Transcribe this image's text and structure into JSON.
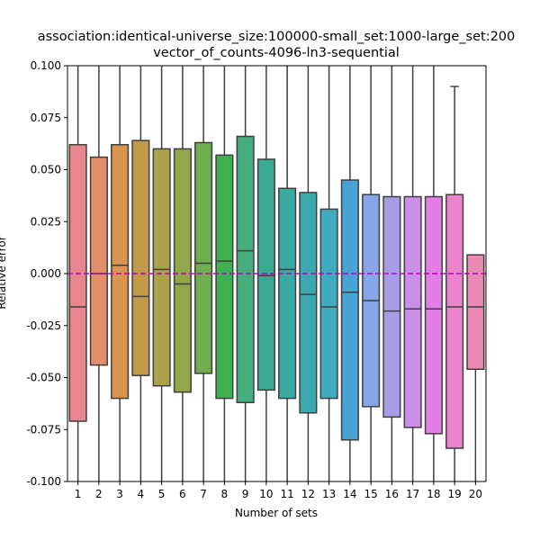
{
  "chart_data": {
    "type": "box",
    "title_line1": "association:identical-universe_size:100000-small_set:1000-large_set:200",
    "title_line2": "vector_of_counts-4096-ln3-sequential",
    "xlabel": "Number of sets",
    "ylabel": "Relative error",
    "ylim": [
      -0.1,
      0.1
    ],
    "yticks": [
      "-0.100",
      "-0.075",
      "-0.050",
      "-0.025",
      "0.000",
      "0.025",
      "0.050",
      "0.075",
      "0.100"
    ],
    "reference_line": {
      "y": 0.0,
      "color": "#bf00bf",
      "style": "dashed"
    },
    "categories": [
      "1",
      "2",
      "3",
      "4",
      "5",
      "6",
      "7",
      "8",
      "9",
      "10",
      "11",
      "12",
      "13",
      "14",
      "15",
      "16",
      "17",
      "18",
      "19",
      "20"
    ],
    "boxes": [
      {
        "q1": -0.071,
        "median": -0.016,
        "q3": 0.062,
        "whisker_low": -0.1,
        "whisker_high": 0.1,
        "color": "#e8878f"
      },
      {
        "q1": -0.044,
        "median": 0.0,
        "q3": 0.056,
        "whisker_low": -0.1,
        "whisker_high": 0.1,
        "color": "#e28f6b"
      },
      {
        "q1": -0.06,
        "median": 0.004,
        "q3": 0.062,
        "whisker_low": -0.1,
        "whisker_high": 0.1,
        "color": "#d9944f"
      },
      {
        "q1": -0.049,
        "median": -0.011,
        "q3": 0.064,
        "whisker_low": -0.1,
        "whisker_high": 0.1,
        "color": "#c39a4b"
      },
      {
        "q1": -0.054,
        "median": 0.002,
        "q3": 0.06,
        "whisker_low": -0.1,
        "whisker_high": 0.1,
        "color": "#aca24b"
      },
      {
        "q1": -0.057,
        "median": -0.005,
        "q3": 0.06,
        "whisker_low": -0.1,
        "whisker_high": 0.1,
        "color": "#94a64b"
      },
      {
        "q1": -0.048,
        "median": 0.005,
        "q3": 0.063,
        "whisker_low": -0.1,
        "whisker_high": 0.1,
        "color": "#6eae4e"
      },
      {
        "q1": -0.06,
        "median": 0.006,
        "q3": 0.057,
        "whisker_low": -0.1,
        "whisker_high": 0.1,
        "color": "#3fb050"
      },
      {
        "q1": -0.062,
        "median": 0.011,
        "q3": 0.066,
        "whisker_low": -0.1,
        "whisker_high": 0.1,
        "color": "#48ad7d"
      },
      {
        "q1": -0.056,
        "median": -0.001,
        "q3": 0.055,
        "whisker_low": -0.1,
        "whisker_high": 0.1,
        "color": "#3aaa93"
      },
      {
        "q1": -0.06,
        "median": 0.002,
        "q3": 0.041,
        "whisker_low": -0.1,
        "whisker_high": 0.1,
        "color": "#3aa9a2"
      },
      {
        "q1": -0.067,
        "median": -0.01,
        "q3": 0.039,
        "whisker_low": -0.1,
        "whisker_high": 0.1,
        "color": "#3aaab0"
      },
      {
        "q1": -0.06,
        "median": -0.016,
        "q3": 0.031,
        "whisker_low": -0.1,
        "whisker_high": 0.1,
        "color": "#3fabbe"
      },
      {
        "q1": -0.08,
        "median": -0.009,
        "q3": 0.045,
        "whisker_low": -0.1,
        "whisker_high": 0.1,
        "color": "#4aa3d6"
      },
      {
        "q1": -0.064,
        "median": -0.013,
        "q3": 0.038,
        "whisker_low": -0.1,
        "whisker_high": 0.1,
        "color": "#86a6e8"
      },
      {
        "q1": -0.069,
        "median": -0.018,
        "q3": 0.037,
        "whisker_low": -0.1,
        "whisker_high": 0.1,
        "color": "#a99ce9"
      },
      {
        "q1": -0.074,
        "median": -0.017,
        "q3": 0.037,
        "whisker_low": -0.1,
        "whisker_high": 0.1,
        "color": "#cb8fea"
      },
      {
        "q1": -0.077,
        "median": -0.017,
        "q3": 0.037,
        "whisker_low": -0.1,
        "whisker_high": 0.1,
        "color": "#e47ee6"
      },
      {
        "q1": -0.084,
        "median": -0.016,
        "q3": 0.038,
        "whisker_low": -0.1,
        "whisker_high": 0.09,
        "color": "#ea84cf"
      },
      {
        "q1": -0.046,
        "median": -0.016,
        "q3": 0.009,
        "whisker_low": -0.1,
        "whisker_high": 0.009,
        "color": "#e989b4"
      }
    ]
  }
}
